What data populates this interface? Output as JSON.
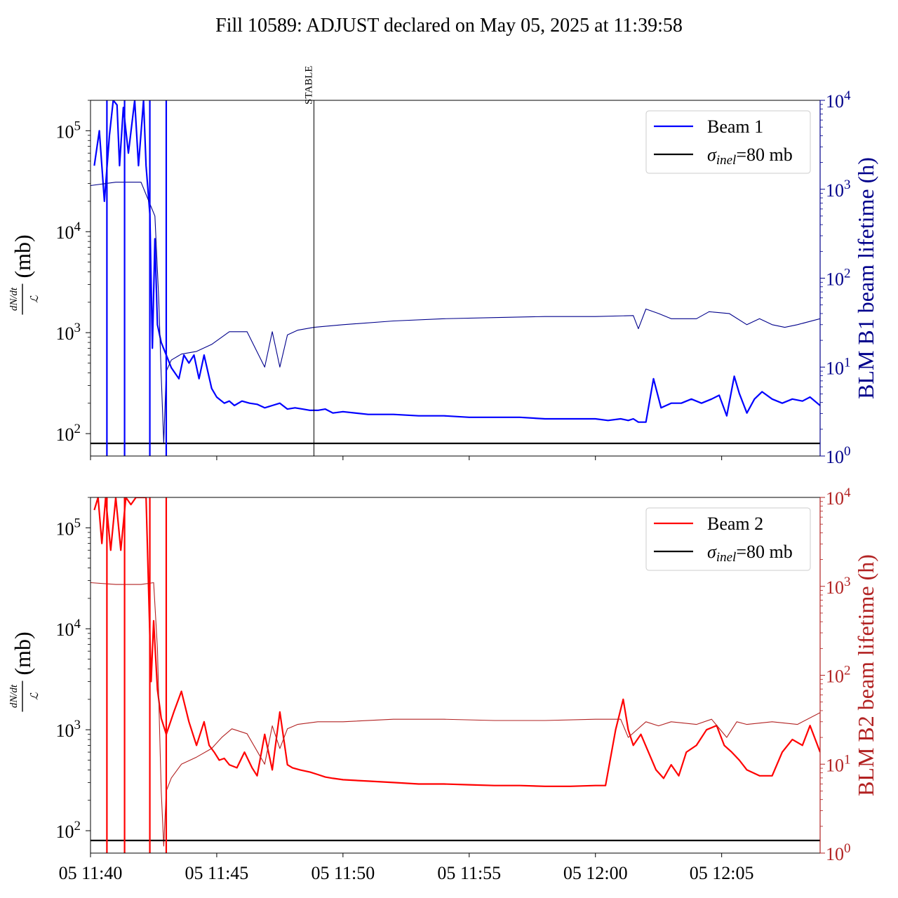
{
  "title": "Fill 10589: ADJUST declared on May 05, 2025 at 11:39:58",
  "colors": {
    "beam1": "#0000ff",
    "beam1_blm": "#00008b",
    "beam2": "#ff0000",
    "beam2_blm": "#b22222",
    "reference": "#000000"
  },
  "chart_data": [
    {
      "type": "line",
      "panel": "top",
      "ylabel_left": "dN/dt / ℒ (mb)",
      "ylabel_right": "BLM B1 beam lifetime (h)",
      "yscale_left": "log",
      "yscale_right": "log",
      "ylim_left": [
        60,
        200000
      ],
      "ylim_right": [
        1,
        10000
      ],
      "x_unit": "minutes after 05 11:40",
      "xlim": [
        0,
        28.9
      ],
      "x_tick_labels": [
        "05 11:40",
        "05 11:45",
        "05 11:50",
        "05 11:55",
        "05 12:00",
        "05 12:05"
      ],
      "x_tick_values": [
        0,
        5,
        10,
        15,
        20,
        25
      ],
      "yticks_left": [
        "10^2",
        "10^3",
        "10^4",
        "10^5"
      ],
      "yticks_right": [
        "10^0",
        "10^1",
        "10^2",
        "10^3",
        "10^4"
      ],
      "annotation": {
        "text": "STABLE",
        "x": 8.85
      },
      "legend": {
        "position": "top-right",
        "entries": [
          "Beam 1",
          "σinel=80 mb"
        ]
      },
      "series": [
        {
          "name": "Beam 1",
          "axis": "left",
          "x": [
            0.15,
            0.35,
            0.55,
            0.75,
            0.9,
            1.05,
            1.15,
            1.3,
            1.5,
            1.75,
            1.9,
            2.1,
            2.2,
            2.35,
            2.45,
            2.55,
            2.65,
            2.8,
            3.0,
            3.2,
            3.5,
            3.7,
            3.9,
            4.1,
            4.3,
            4.5,
            4.8,
            5.0,
            5.3,
            5.5,
            5.7,
            6.0,
            6.3,
            6.6,
            6.9,
            7.2,
            7.5,
            7.8,
            8.1,
            8.4,
            8.7,
            9.0,
            9.3,
            9.6,
            10.0,
            11.0,
            12.0,
            13.0,
            14.0,
            15.0,
            16.0,
            17.0,
            18.0,
            19.0,
            20.0,
            20.5,
            21.0,
            21.3,
            21.5,
            21.7,
            22.0,
            22.3,
            22.6,
            23.0,
            23.4,
            23.8,
            24.2,
            24.6,
            24.9,
            25.2,
            25.5,
            25.7,
            26.0,
            26.3,
            26.6,
            27.0,
            27.4,
            27.8,
            28.2,
            28.5,
            28.9
          ],
          "y": [
            45000,
            100000,
            20000,
            90000,
            200000,
            180000,
            45000,
            170000,
            60000,
            230000,
            45000,
            230000,
            45000,
            15000,
            700,
            8500,
            1200,
            800,
            600,
            450,
            350,
            600,
            500,
            600,
            350,
            600,
            280,
            230,
            200,
            210,
            190,
            210,
            200,
            195,
            180,
            190,
            200,
            175,
            180,
            175,
            170,
            170,
            175,
            160,
            165,
            155,
            155,
            150,
            150,
            145,
            145,
            145,
            140,
            140,
            140,
            135,
            140,
            135,
            140,
            130,
            130,
            350,
            180,
            200,
            200,
            220,
            200,
            220,
            240,
            150,
            370,
            250,
            160,
            220,
            260,
            220,
            200,
            220,
            210,
            230,
            190
          ]
        },
        {
          "name": "BLM B1 beam lifetime",
          "axis": "right",
          "x": [
            0,
            1,
            2,
            2.55,
            2.7,
            2.8,
            2.9,
            3.0,
            3.2,
            3.6,
            4.2,
            4.8,
            5.5,
            6.2,
            6.9,
            7.2,
            7.5,
            7.8,
            8.2,
            8.85,
            10,
            12,
            14,
            16,
            18,
            20,
            21.5,
            21.7,
            22,
            22.5,
            23,
            24,
            24.5,
            25.3,
            26,
            26.5,
            27,
            27.5,
            28,
            28.9
          ],
          "y": [
            1100,
            1200,
            1200,
            500,
            60,
            8,
            1.4,
            9,
            12,
            14,
            15,
            18,
            25,
            25,
            10,
            25,
            10,
            23,
            26,
            28,
            30,
            33,
            35,
            36,
            37,
            37,
            38,
            27,
            45,
            40,
            35,
            35,
            42,
            40,
            30,
            35,
            30,
            28,
            30,
            35
          ]
        },
        {
          "name": "σinel=80 mb",
          "axis": "left",
          "x": [
            0,
            28.9
          ],
          "y": [
            80,
            80
          ]
        }
      ]
    },
    {
      "type": "line",
      "panel": "bottom",
      "ylabel_left": "dN/dt / ℒ (mb)",
      "ylabel_right": "BLM B2 beam lifetime (h)",
      "yscale_left": "log",
      "yscale_right": "log",
      "ylim_left": [
        60,
        200000
      ],
      "ylim_right": [
        1,
        10000
      ],
      "x_unit": "minutes after 05 11:40",
      "xlim": [
        0,
        28.9
      ],
      "x_tick_labels": [
        "05 11:40",
        "05 11:45",
        "05 11:50",
        "05 11:55",
        "05 12:00",
        "05 12:05"
      ],
      "x_tick_values": [
        0,
        5,
        10,
        15,
        20,
        25
      ],
      "yticks_left": [
        "10^2",
        "10^3",
        "10^4",
        "10^5"
      ],
      "yticks_right": [
        "10^0",
        "10^1",
        "10^2",
        "10^3",
        "10^4"
      ],
      "legend": {
        "position": "top-right",
        "entries": [
          "Beam 2",
          "σinel=80 mb"
        ]
      },
      "series": [
        {
          "name": "Beam 2",
          "axis": "left",
          "x": [
            0.15,
            0.3,
            0.45,
            0.6,
            0.8,
            1.0,
            1.2,
            1.4,
            1.6,
            1.8,
            2.0,
            2.2,
            2.4,
            2.5,
            2.65,
            2.8,
            3.0,
            3.3,
            3.6,
            3.9,
            4.2,
            4.5,
            4.7,
            4.9,
            5.1,
            5.3,
            5.5,
            5.8,
            6.1,
            6.4,
            6.6,
            6.9,
            7.2,
            7.5,
            7.8,
            8.0,
            8.3,
            8.7,
            9.0,
            9.3,
            9.6,
            10.0,
            11.0,
            12.0,
            13.0,
            14.0,
            15.0,
            16.0,
            17.0,
            18.0,
            19.0,
            20.0,
            20.4,
            20.8,
            21.1,
            21.3,
            21.5,
            21.8,
            22.1,
            22.4,
            22.7,
            23.0,
            23.3,
            23.6,
            24.0,
            24.4,
            24.8,
            25.1,
            25.4,
            25.7,
            26.0,
            26.5,
            27.0,
            27.4,
            27.8,
            28.2,
            28.5,
            28.9
          ],
          "y": [
            150000,
            300000,
            70000,
            250000,
            60000,
            250000,
            60000,
            300000,
            170000,
            300000,
            300000,
            250000,
            3000,
            12000,
            2500,
            1300,
            900,
            1500,
            2400,
            1200,
            700,
            1200,
            700,
            600,
            500,
            520,
            450,
            420,
            600,
            420,
            350,
            900,
            400,
            1500,
            450,
            420,
            400,
            380,
            360,
            340,
            330,
            320,
            310,
            300,
            290,
            290,
            285,
            280,
            280,
            275,
            275,
            280,
            280,
            1000,
            2000,
            1000,
            700,
            900,
            600,
            400,
            330,
            450,
            350,
            600,
            700,
            1000,
            1100,
            700,
            600,
            500,
            400,
            350,
            350,
            600,
            800,
            700,
            1100,
            600
          ]
        },
        {
          "name": "BLM B2 beam lifetime",
          "axis": "right",
          "x": [
            0,
            1,
            2,
            2.5,
            2.65,
            2.8,
            2.9,
            3.0,
            3.2,
            3.6,
            4.2,
            4.8,
            5.2,
            5.6,
            6.2,
            6.9,
            7.2,
            7.5,
            7.8,
            8.2,
            9,
            10,
            12,
            14,
            16,
            18,
            20,
            21.0,
            21.3,
            22,
            22.5,
            23,
            24,
            24.6,
            25.2,
            25.6,
            26,
            27,
            28,
            28.9
          ],
          "y": [
            1100,
            1050,
            1050,
            1100,
            200,
            5,
            1.2,
            5,
            7,
            10,
            12,
            15,
            20,
            25,
            22,
            10,
            27,
            15,
            25,
            28,
            30,
            30,
            32,
            32,
            31,
            31,
            32,
            32,
            20,
            30,
            27,
            30,
            28,
            32,
            20,
            30,
            28,
            30,
            28,
            38
          ]
        },
        {
          "name": "σinel=80 mb",
          "axis": "left",
          "x": [
            0,
            28.9
          ],
          "y": [
            80,
            80
          ]
        }
      ]
    }
  ]
}
